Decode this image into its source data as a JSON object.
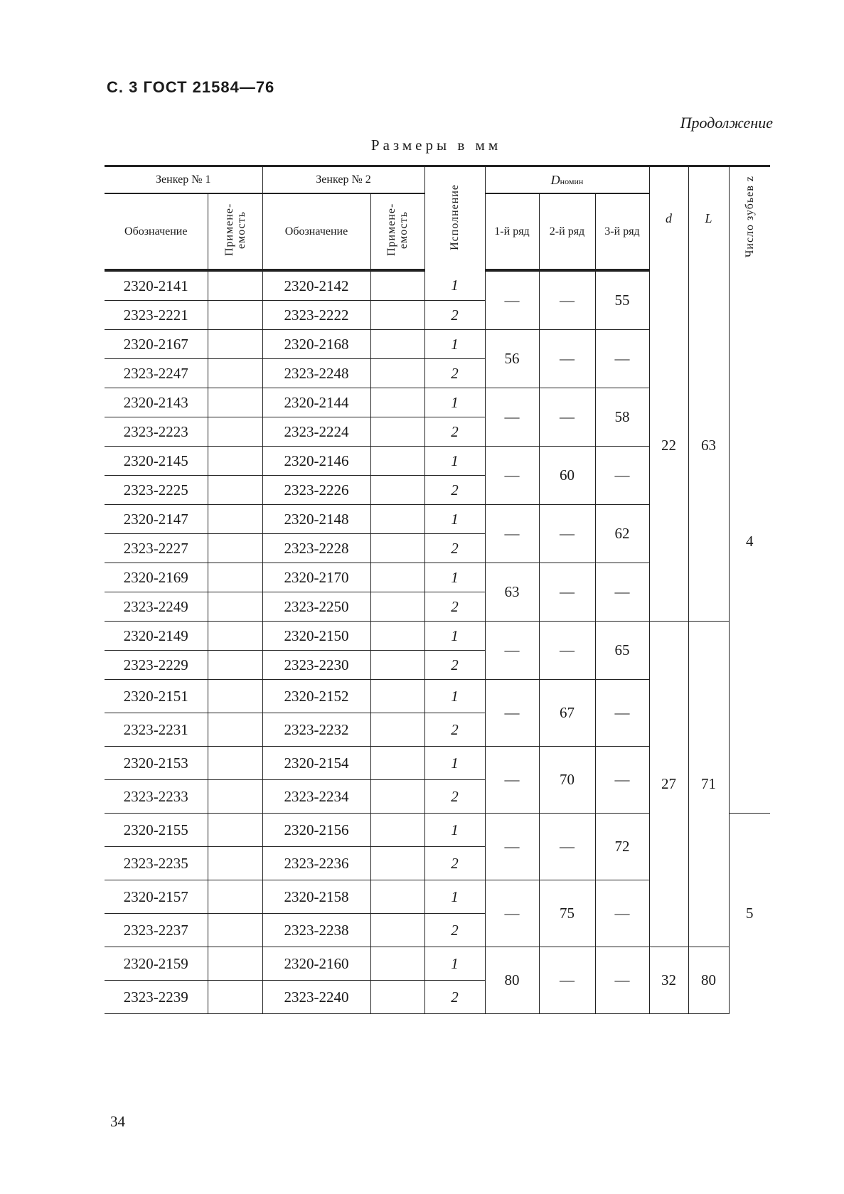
{
  "header": {
    "page_label": "С. 3 ГОСТ 21584—76",
    "continuation": "Продолжение",
    "units": "Размеры в мм",
    "page_number": "34"
  },
  "columns": {
    "zenker1": "Зенкер № 1",
    "zenker2": "Зенкер № 2",
    "designation": "Обозначение",
    "applicability": "Примене-емость",
    "execution": "Исполнение",
    "d_nom": "D",
    "d_nom_sub": "номин",
    "row1": "1-й ряд",
    "row2": "2-й ряд",
    "row3": "3-й ряд",
    "d": "d",
    "L": "L",
    "teeth": "Число зубьев z"
  },
  "groups": [
    {
      "rows": [
        [
          "2320-2141",
          "2320-2142",
          "1"
        ],
        [
          "2323-2221",
          "2323-2222",
          "2"
        ]
      ],
      "D": [
        "—",
        "—",
        "55"
      ]
    },
    {
      "rows": [
        [
          "2320-2167",
          "2320-2168",
          "1"
        ],
        [
          "2323-2247",
          "2323-2248",
          "2"
        ]
      ],
      "D": [
        "56",
        "—",
        "—"
      ]
    },
    {
      "rows": [
        [
          "2320-2143",
          "2320-2144",
          "1"
        ],
        [
          "2323-2223",
          "2323-2224",
          "2"
        ]
      ],
      "D": [
        "—",
        "—",
        "58"
      ]
    },
    {
      "rows": [
        [
          "2320-2145",
          "2320-2146",
          "1"
        ],
        [
          "2323-2225",
          "2323-2226",
          "2"
        ]
      ],
      "D": [
        "—",
        "60",
        "—"
      ]
    },
    {
      "rows": [
        [
          "2320-2147",
          "2320-2148",
          "1"
        ],
        [
          "2323-2227",
          "2323-2228",
          "2"
        ]
      ],
      "D": [
        "—",
        "—",
        "62"
      ]
    },
    {
      "rows": [
        [
          "2320-2169",
          "2320-2170",
          "1"
        ],
        [
          "2323-2249",
          "2323-2250",
          "2"
        ]
      ],
      "D": [
        "63",
        "—",
        "—"
      ]
    },
    {
      "rows": [
        [
          "2320-2149",
          "2320-2150",
          "1"
        ],
        [
          "2323-2229",
          "2323-2230",
          "2"
        ]
      ],
      "D": [
        "—",
        "—",
        "65"
      ]
    },
    {
      "rows": [
        [
          "2320-2151",
          "2320-2152",
          "1"
        ],
        [
          "2323-2231",
          "2323-2232",
          "2"
        ]
      ],
      "D": [
        "—",
        "67",
        "—"
      ]
    },
    {
      "rows": [
        [
          "2320-2153",
          "2320-2154",
          "1"
        ],
        [
          "2323-2233",
          "2323-2234",
          "2"
        ]
      ],
      "D": [
        "—",
        "70",
        "—"
      ]
    },
    {
      "rows": [
        [
          "2320-2155",
          "2320-2156",
          "1"
        ],
        [
          "2323-2235",
          "2323-2236",
          "2"
        ]
      ],
      "D": [
        "—",
        "—",
        "72"
      ]
    },
    {
      "rows": [
        [
          "2320-2157",
          "2320-2158",
          "1"
        ],
        [
          "2323-2237",
          "2323-2238",
          "2"
        ]
      ],
      "D": [
        "—",
        "75",
        "—"
      ]
    },
    {
      "rows": [
        [
          "2320-2159",
          "2320-2160",
          "1"
        ],
        [
          "2323-2239",
          "2323-2240",
          "2"
        ]
      ],
      "D": [
        "80",
        "—",
        "—"
      ]
    }
  ],
  "dL_spans": [
    {
      "groups": 6,
      "d": "22",
      "L": "63"
    },
    {
      "groups": 5,
      "d": "27",
      "L": "71"
    },
    {
      "groups": 1,
      "d": "32",
      "L": "80"
    }
  ],
  "z_spans": [
    {
      "groups": 9,
      "z": "4"
    },
    {
      "groups": 3,
      "z": "5"
    }
  ]
}
